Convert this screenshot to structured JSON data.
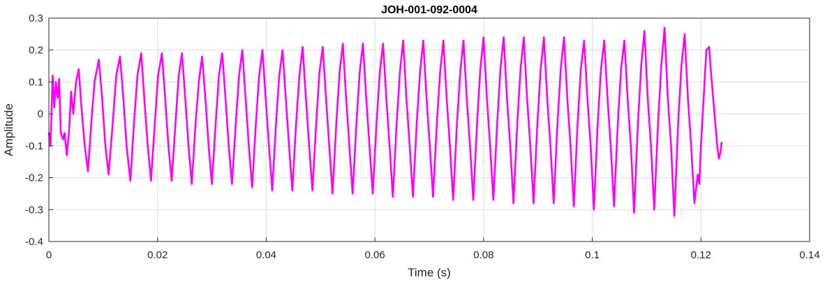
{
  "chart_data": {
    "type": "line",
    "title": "JOH-001-092-0004",
    "xlabel": "Time (s)",
    "ylabel": "Amplitude",
    "xlim": [
      0,
      0.14
    ],
    "ylim": [
      -0.4,
      0.3
    ],
    "grid": true,
    "legend": "none",
    "x_ticks": [
      0,
      0.02,
      0.04,
      0.06,
      0.08,
      0.1,
      0.12,
      0.14
    ],
    "x_tick_labels": [
      "0",
      "0.02",
      "0.04",
      "0.06",
      "0.08",
      "0.1",
      "0.12",
      "0.14"
    ],
    "y_ticks": [
      -0.4,
      -0.3,
      -0.2,
      -0.1,
      0,
      0.1,
      0.2,
      0.3
    ],
    "y_tick_labels": [
      "-0.4",
      "-0.3",
      "-0.2",
      "-0.1",
      "0",
      "0.1",
      "0.2",
      "0.3"
    ],
    "series": [
      {
        "color": "#ff00ff",
        "points": [
          [
            0.0,
            -0.06
          ],
          [
            0.0003,
            -0.1
          ],
          [
            0.0007,
            0.12
          ],
          [
            0.001,
            0.02
          ],
          [
            0.0013,
            0.1
          ],
          [
            0.0016,
            0.05
          ],
          [
            0.0019,
            0.11
          ],
          [
            0.0022,
            -0.06
          ],
          [
            0.0026,
            -0.08
          ],
          [
            0.0029,
            -0.06
          ],
          [
            0.0033,
            -0.13
          ],
          [
            0.0037,
            -0.06
          ],
          [
            0.0041,
            0.07
          ],
          [
            0.0045,
            0.0
          ],
          [
            0.005,
            0.1
          ],
          [
            0.0055,
            0.14
          ],
          [
            0.006,
            0.02
          ],
          [
            0.0066,
            -0.1
          ],
          [
            0.0072,
            -0.18
          ],
          [
            0.0078,
            -0.03
          ],
          [
            0.0084,
            0.1
          ],
          [
            0.0092,
            0.17
          ],
          [
            0.0098,
            0.05
          ],
          [
            0.0104,
            -0.1
          ],
          [
            0.011,
            -0.19
          ],
          [
            0.0118,
            -0.02
          ],
          [
            0.0124,
            0.12
          ],
          [
            0.0131,
            0.18
          ],
          [
            0.0137,
            0.05
          ],
          [
            0.0143,
            -0.1
          ],
          [
            0.015,
            -0.21
          ],
          [
            0.0157,
            -0.02
          ],
          [
            0.0163,
            0.12
          ],
          [
            0.017,
            0.19
          ],
          [
            0.0176,
            0.04
          ],
          [
            0.0182,
            -0.1
          ],
          [
            0.0188,
            -0.21
          ],
          [
            0.0195,
            -0.03
          ],
          [
            0.0201,
            0.12
          ],
          [
            0.0208,
            0.19
          ],
          [
            0.0214,
            0.05
          ],
          [
            0.022,
            -0.1
          ],
          [
            0.0226,
            -0.21
          ],
          [
            0.0233,
            -0.03
          ],
          [
            0.0239,
            0.12
          ],
          [
            0.0245,
            0.19
          ],
          [
            0.0251,
            0.05
          ],
          [
            0.0257,
            -0.1
          ],
          [
            0.0263,
            -0.22
          ],
          [
            0.027,
            -0.03
          ],
          [
            0.0276,
            0.1
          ],
          [
            0.0282,
            0.18
          ],
          [
            0.0288,
            0.05
          ],
          [
            0.0294,
            -0.1
          ],
          [
            0.03,
            -0.22
          ],
          [
            0.0307,
            -0.03
          ],
          [
            0.0313,
            0.12
          ],
          [
            0.0319,
            0.19
          ],
          [
            0.0325,
            0.05
          ],
          [
            0.0331,
            -0.1
          ],
          [
            0.0337,
            -0.22
          ],
          [
            0.0344,
            -0.03
          ],
          [
            0.035,
            0.12
          ],
          [
            0.0356,
            0.2
          ],
          [
            0.0362,
            0.05
          ],
          [
            0.0368,
            -0.1
          ],
          [
            0.0374,
            -0.23
          ],
          [
            0.0381,
            -0.03
          ],
          [
            0.0387,
            0.12
          ],
          [
            0.0393,
            0.2
          ],
          [
            0.0399,
            0.05
          ],
          [
            0.0405,
            -0.1
          ],
          [
            0.0411,
            -0.24
          ],
          [
            0.0418,
            -0.03
          ],
          [
            0.0424,
            0.12
          ],
          [
            0.043,
            0.2
          ],
          [
            0.0436,
            0.05
          ],
          [
            0.0442,
            -0.1
          ],
          [
            0.0448,
            -0.24
          ],
          [
            0.0455,
            -0.03
          ],
          [
            0.0461,
            0.12
          ],
          [
            0.0467,
            0.21
          ],
          [
            0.0473,
            0.05
          ],
          [
            0.0479,
            -0.1
          ],
          [
            0.0485,
            -0.24
          ],
          [
            0.0492,
            -0.03
          ],
          [
            0.0498,
            0.13
          ],
          [
            0.0504,
            0.21
          ],
          [
            0.051,
            0.05
          ],
          [
            0.0516,
            -0.1
          ],
          [
            0.0522,
            -0.25
          ],
          [
            0.0529,
            -0.03
          ],
          [
            0.0535,
            0.13
          ],
          [
            0.0541,
            0.22
          ],
          [
            0.0547,
            0.05
          ],
          [
            0.0553,
            -0.1
          ],
          [
            0.0559,
            -0.25
          ],
          [
            0.0566,
            -0.03
          ],
          [
            0.0572,
            0.13
          ],
          [
            0.0578,
            0.22
          ],
          [
            0.0584,
            0.05
          ],
          [
            0.059,
            -0.1
          ],
          [
            0.0596,
            -0.25
          ],
          [
            0.0603,
            -0.03
          ],
          [
            0.0609,
            0.13
          ],
          [
            0.0615,
            0.22
          ],
          [
            0.0621,
            0.05
          ],
          [
            0.0627,
            -0.1
          ],
          [
            0.0633,
            -0.26
          ],
          [
            0.064,
            -0.03
          ],
          [
            0.0646,
            0.13
          ],
          [
            0.0652,
            0.23
          ],
          [
            0.0658,
            0.05
          ],
          [
            0.0664,
            -0.1
          ],
          [
            0.067,
            -0.26
          ],
          [
            0.0677,
            -0.03
          ],
          [
            0.0683,
            0.13
          ],
          [
            0.0689,
            0.23
          ],
          [
            0.0695,
            0.05
          ],
          [
            0.0701,
            -0.1
          ],
          [
            0.0707,
            -0.26
          ],
          [
            0.0714,
            -0.03
          ],
          [
            0.072,
            0.13
          ],
          [
            0.0726,
            0.23
          ],
          [
            0.0732,
            0.05
          ],
          [
            0.0738,
            -0.1
          ],
          [
            0.0744,
            -0.27
          ],
          [
            0.0751,
            -0.03
          ],
          [
            0.0757,
            0.13
          ],
          [
            0.0763,
            0.23
          ],
          [
            0.0769,
            0.05
          ],
          [
            0.0775,
            -0.1
          ],
          [
            0.0781,
            -0.27
          ],
          [
            0.0788,
            -0.03
          ],
          [
            0.0794,
            0.14
          ],
          [
            0.08,
            0.24
          ],
          [
            0.0806,
            0.05
          ],
          [
            0.0812,
            -0.1
          ],
          [
            0.0818,
            -0.27
          ],
          [
            0.0825,
            -0.03
          ],
          [
            0.0831,
            0.14
          ],
          [
            0.0837,
            0.24
          ],
          [
            0.0843,
            0.05
          ],
          [
            0.0849,
            -0.1
          ],
          [
            0.0855,
            -0.28
          ],
          [
            0.0862,
            -0.03
          ],
          [
            0.0868,
            0.14
          ],
          [
            0.0874,
            0.24
          ],
          [
            0.088,
            0.05
          ],
          [
            0.0886,
            -0.1
          ],
          [
            0.0892,
            -0.28
          ],
          [
            0.0899,
            -0.03
          ],
          [
            0.0905,
            0.14
          ],
          [
            0.0911,
            0.24
          ],
          [
            0.0917,
            0.05
          ],
          [
            0.0923,
            -0.1
          ],
          [
            0.0929,
            -0.28
          ],
          [
            0.0936,
            -0.03
          ],
          [
            0.0942,
            0.14
          ],
          [
            0.0948,
            0.24
          ],
          [
            0.0954,
            0.05
          ],
          [
            0.096,
            -0.1
          ],
          [
            0.0966,
            -0.29
          ],
          [
            0.0973,
            -0.03
          ],
          [
            0.0979,
            0.14
          ],
          [
            0.0985,
            0.23
          ],
          [
            0.0991,
            0.05
          ],
          [
            0.0997,
            -0.1
          ],
          [
            0.1003,
            -0.3
          ],
          [
            0.101,
            -0.03
          ],
          [
            0.1016,
            0.14
          ],
          [
            0.1022,
            0.23
          ],
          [
            0.1028,
            0.05
          ],
          [
            0.1034,
            -0.1
          ],
          [
            0.104,
            -0.29
          ],
          [
            0.1047,
            -0.03
          ],
          [
            0.1053,
            0.14
          ],
          [
            0.1059,
            0.23
          ],
          [
            0.1065,
            0.05
          ],
          [
            0.1071,
            -0.1
          ],
          [
            0.1077,
            -0.31
          ],
          [
            0.1084,
            -0.03
          ],
          [
            0.109,
            0.15
          ],
          [
            0.1096,
            0.26
          ],
          [
            0.1102,
            0.05
          ],
          [
            0.1108,
            -0.1
          ],
          [
            0.1114,
            -0.3
          ],
          [
            0.1121,
            -0.03
          ],
          [
            0.1127,
            0.15
          ],
          [
            0.1133,
            0.27
          ],
          [
            0.1139,
            0.05
          ],
          [
            0.1145,
            -0.1
          ],
          [
            0.1151,
            -0.32
          ],
          [
            0.1158,
            -0.03
          ],
          [
            0.1164,
            0.15
          ],
          [
            0.117,
            0.25
          ],
          [
            0.1176,
            0.05
          ],
          [
            0.1182,
            -0.1
          ],
          [
            0.1188,
            -0.28
          ],
          [
            0.1194,
            -0.19
          ],
          [
            0.1197,
            -0.22
          ],
          [
            0.12,
            -0.1
          ],
          [
            0.1205,
            0.05
          ],
          [
            0.121,
            0.2
          ],
          [
            0.1215,
            0.21
          ],
          [
            0.1218,
            0.14
          ],
          [
            0.1222,
            0.06
          ],
          [
            0.1226,
            -0.02
          ],
          [
            0.123,
            -0.1
          ],
          [
            0.1233,
            -0.14
          ],
          [
            0.1236,
            -0.12
          ],
          [
            0.1238,
            -0.09
          ]
        ]
      }
    ]
  }
}
